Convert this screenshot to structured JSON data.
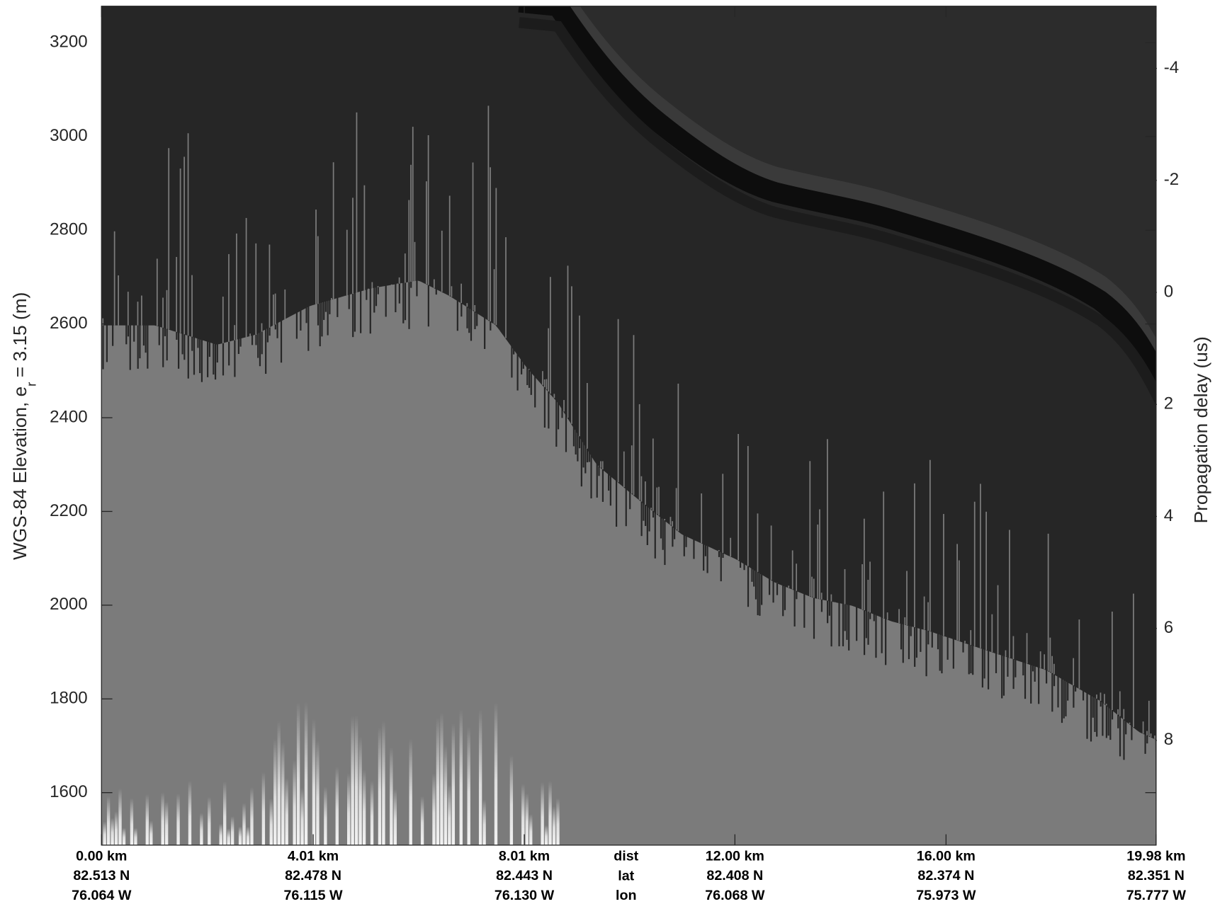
{
  "chart_data": {
    "type": "echogram",
    "ylabel": "WGS-84 Elevation, e",
    "ylabel_sub": "r",
    "ylabel_rest": "= 3.15 (m)",
    "y2label": "Propagation delay (us)",
    "ylim": [
      1488,
      3278
    ],
    "yticks": [
      1600,
      1800,
      2000,
      2200,
      2400,
      2600,
      2800,
      3000,
      3200
    ],
    "y2lim": [
      -5.11,
      9.87
    ],
    "y2ticks": [
      -4,
      -2,
      0,
      2,
      4,
      6,
      8
    ],
    "xlim": [
      0,
      19.98
    ],
    "xticks": [
      {
        "value": 0,
        "label": "0.00 km"
      },
      {
        "value": 4.01,
        "label": "4.01 km"
      },
      {
        "value": 8.01,
        "label": "8.01 km"
      },
      {
        "value": 12.0,
        "label": "12.00 km"
      },
      {
        "value": 16.0,
        "label": "16.00 km"
      },
      {
        "value": 19.98,
        "label": "19.98 km"
      }
    ],
    "xtick_lat": [
      "82.513 N",
      "82.478 N",
      "82.443 N",
      "82.408 N",
      "82.374 N",
      "82.351 N"
    ],
    "xtick_lon": [
      "76.064 W",
      "76.115 W",
      "76.130 W",
      "76.068 W",
      "75.973 W",
      "75.777 W"
    ],
    "xtick_rows": [
      "dist",
      "lat",
      "lon"
    ]
  }
}
